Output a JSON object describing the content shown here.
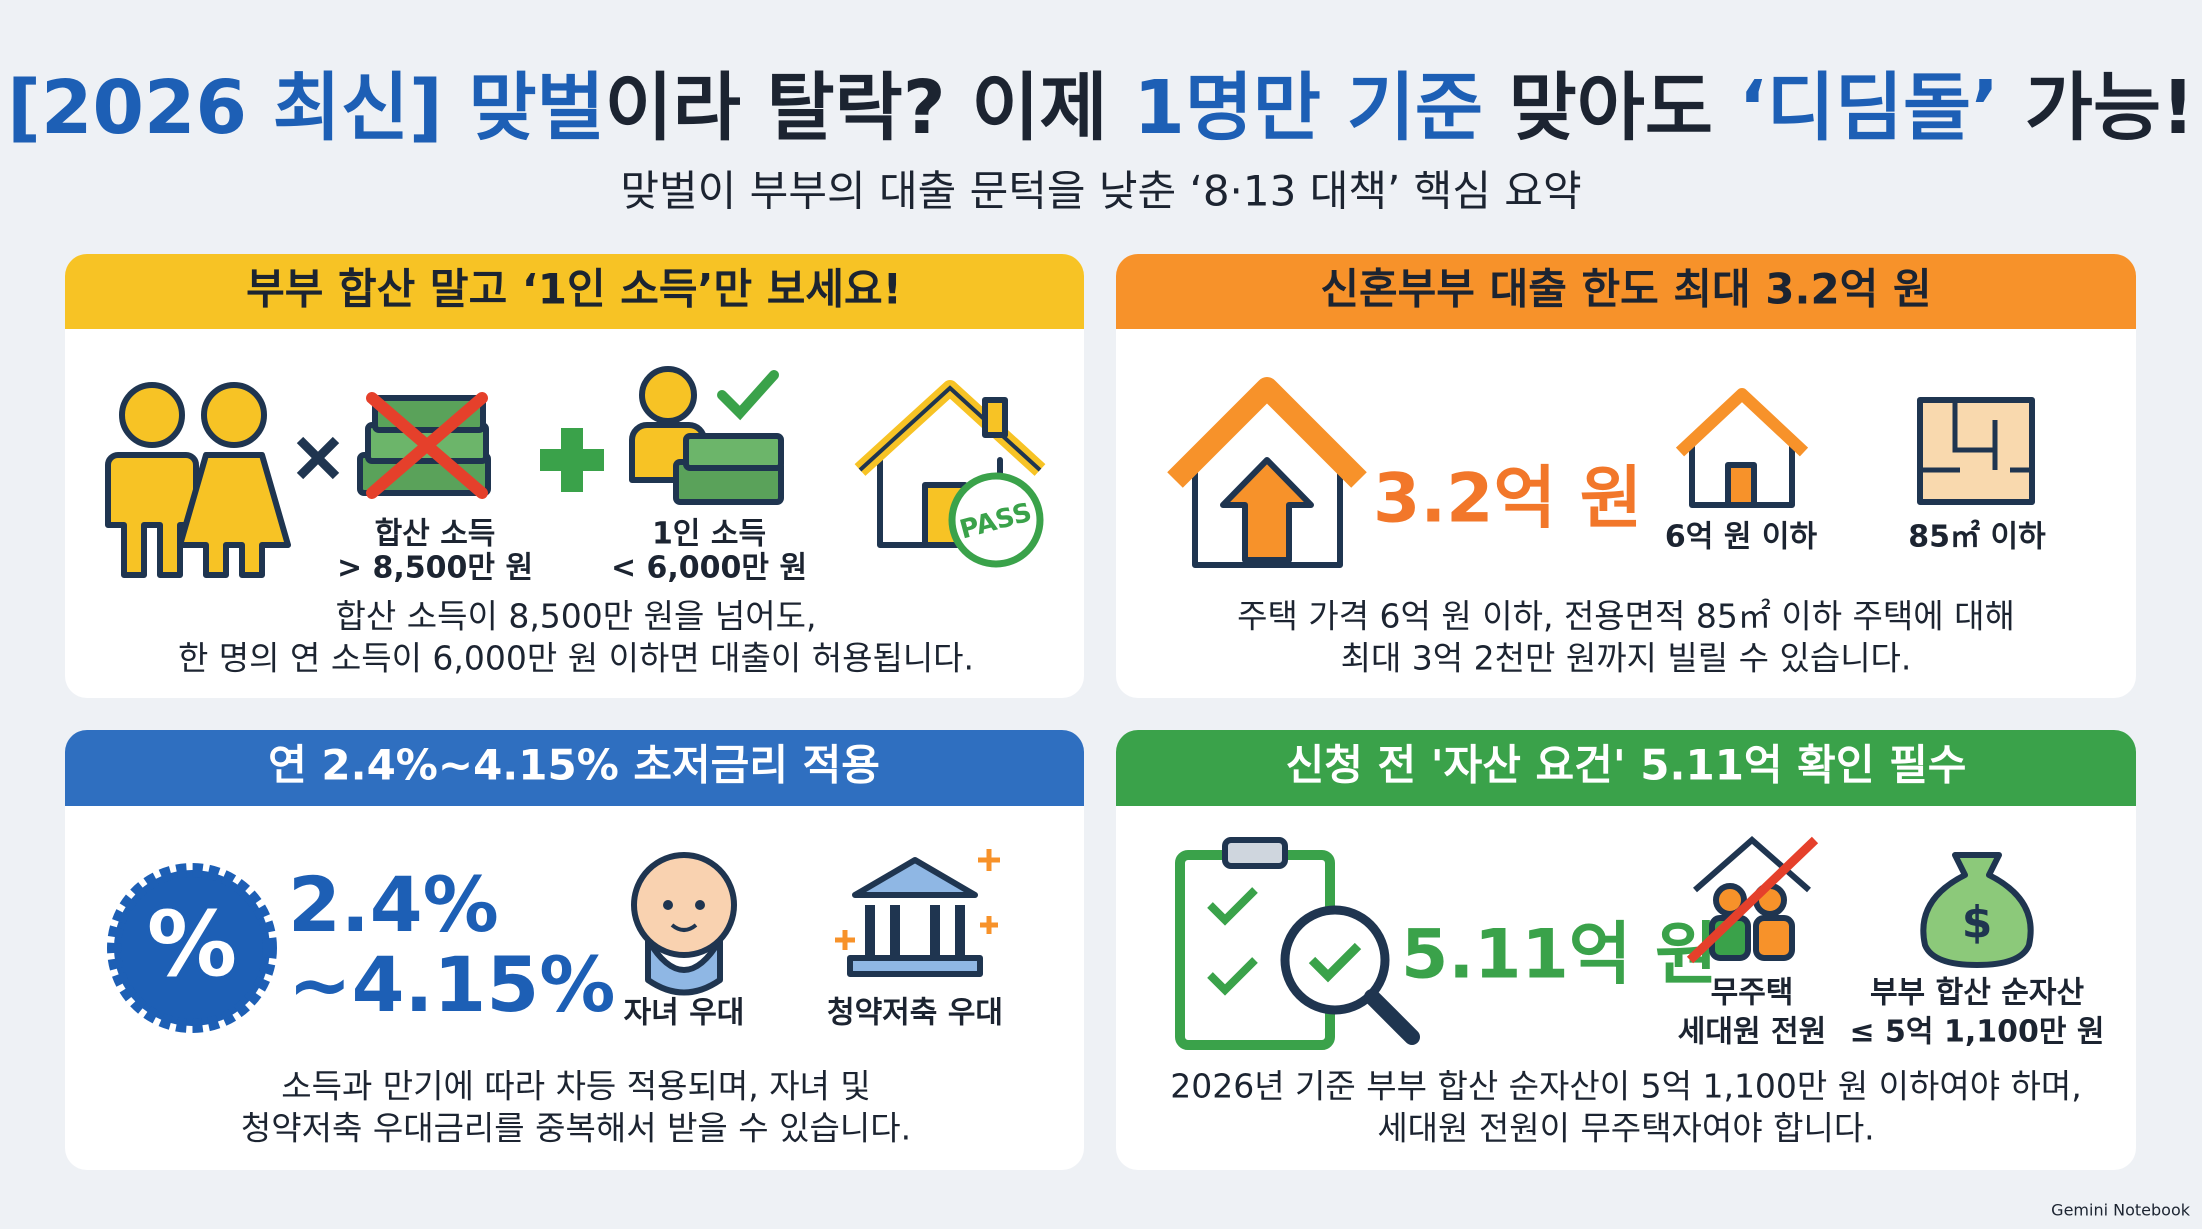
{
  "header": {
    "title_parts": [
      "[2026 최신] 맞벌",
      "이라 탈락? 이제 ",
      "1명만 기준",
      " 맞아도 ",
      "‘디딤돌’",
      " 가능!"
    ],
    "subtitle": "맞벌이 부부의 대출 문턱을 낮춘 ‘8·13 대책’ 핵심 요약"
  },
  "cards": [
    {
      "title": "부부 합산 말고 ‘1인 소득’만 보세요!",
      "labels": [
        "합산 소득",
        "> 8,500만 원",
        "1인 소득",
        "< 6,000만 원",
        "PASS"
      ],
      "description": [
        "합산 소득이 8,500만 원을 넘어도,",
        "한 명의 연 소득이 6,000만 원 이하면 대출이 허용됩니다."
      ]
    },
    {
      "title": "신혼부부 대출 한도 최대 3.2억 원",
      "highlight": "3.2억 원",
      "labels": [
        "6억 원 이하",
        "85㎡ 이하"
      ],
      "description": [
        "주택 가격 6억 원 이하, 전용면적 85㎡ 이하 주택에 대해",
        "최대 3억 2천만 원까지 빌릴 수 있습니다."
      ]
    },
    {
      "title": "연 2.4%~4.15% 초저금리 적용",
      "badge": "%",
      "highlight": [
        "2.4%",
        "~4.15%"
      ],
      "labels": [
        "자녀 우대",
        "청약저축 우대"
      ],
      "description": [
        "소득과 만기에 따라 차등 적용되며, 자녀 및",
        "청약저축 우대금리를 중복해서 받을 수 있습니다."
      ]
    },
    {
      "title": "신청 전 '자산 요건' 5.11억 확인 필수",
      "highlight": "5.11억 원",
      "labels": [
        "무주택",
        "세대원 전원",
        "부부 합산 순자산",
        "≤ 5억 1,100만 원"
      ],
      "description": [
        "2026년 기준 부부 합산 순자산이 5억 1,100만 원 이하여야 하며,",
        "세대원 전원이 무주택자여야 합니다."
      ]
    }
  ],
  "footer": "Gemini Notebook"
}
